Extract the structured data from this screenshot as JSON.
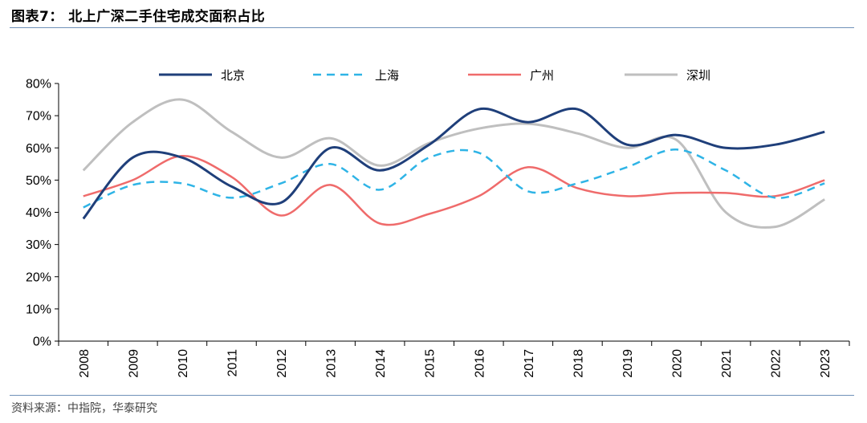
{
  "title": "图表7：  北上广深二手住宅成交面积占比",
  "source": "资料来源：中指院，华泰研究",
  "chart_data": {
    "type": "line",
    "x": [
      "2008",
      "2009",
      "2010",
      "2011",
      "2012",
      "2013",
      "2014",
      "2015",
      "2016",
      "2017",
      "2018",
      "2019",
      "2020",
      "2021",
      "2022",
      "2023"
    ],
    "ylim": [
      0,
      80
    ],
    "yticks": [
      "0%",
      "10%",
      "20%",
      "30%",
      "40%",
      "50%",
      "60%",
      "70%",
      "80%"
    ],
    "grid": false,
    "legend_position": "top",
    "series": [
      {
        "name": "北京",
        "color": "#1f3f7a",
        "dash": "solid",
        "width": 3,
        "values": [
          38,
          57,
          57,
          48,
          43,
          60,
          53,
          61,
          72,
          68,
          72,
          61,
          64,
          60,
          61,
          65
        ]
      },
      {
        "name": "上海",
        "color": "#2fb4e6",
        "dash": "dashed",
        "width": 2.5,
        "values": [
          41.5,
          48.5,
          49,
          44.5,
          49,
          55,
          47,
          57,
          58.5,
          46.5,
          49,
          54,
          59.5,
          53,
          44.5,
          49
        ]
      },
      {
        "name": "广州",
        "color": "#ef6b6b",
        "dash": "solid",
        "width": 2.5,
        "values": [
          45,
          50,
          57.5,
          51,
          39,
          48.5,
          36.5,
          39.5,
          45,
          54,
          47.5,
          45,
          46,
          46,
          45,
          50
        ]
      },
      {
        "name": "深圳",
        "color": "#bfbfbf",
        "dash": "solid",
        "width": 3,
        "values": [
          53,
          68,
          75,
          65,
          57,
          63,
          54.5,
          61.5,
          66,
          67.5,
          64.5,
          60,
          62.5,
          40,
          35.5,
          44
        ]
      }
    ]
  }
}
